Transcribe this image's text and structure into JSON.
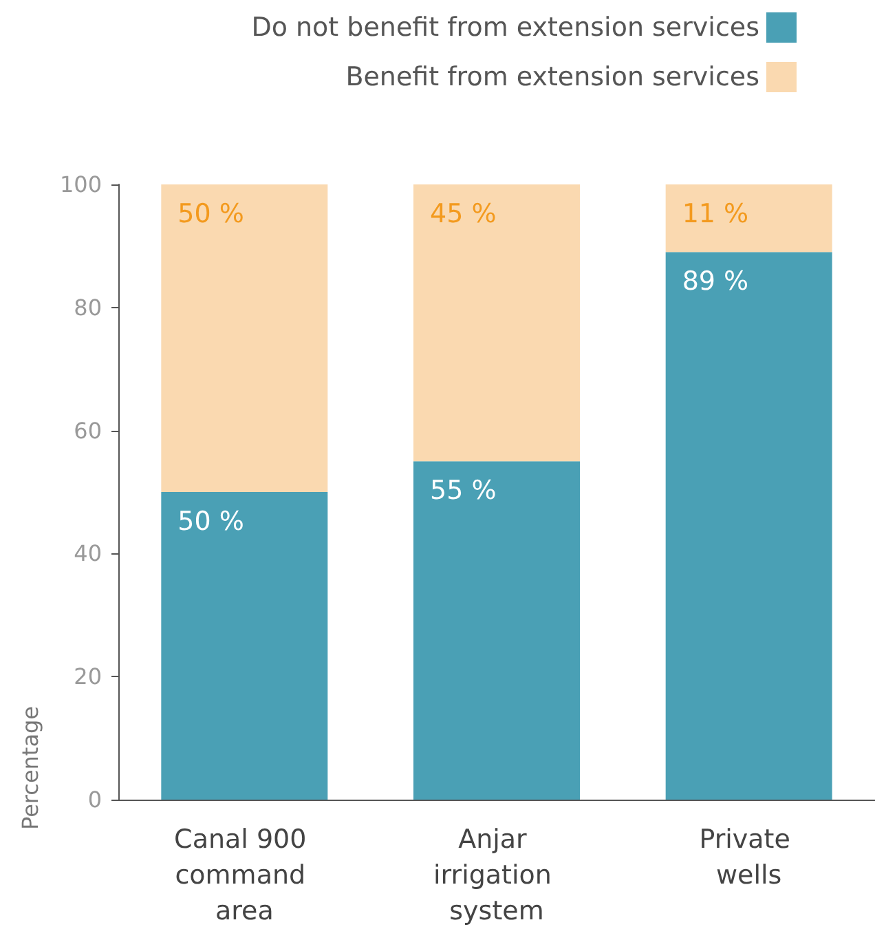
{
  "chart_data": {
    "type": "bar",
    "stacked": true,
    "categories": [
      "Canal 900 command area",
      "Anjar irrigation system",
      "Private wells"
    ],
    "series": [
      {
        "name": "Do not benefit from extension services",
        "color": "#4aa0b5",
        "values": [
          50,
          55,
          89
        ],
        "value_labels": [
          "50 %",
          "55 %",
          "89 %"
        ]
      },
      {
        "name": "Benefit from extension services",
        "color": "#fad9b0",
        "values": [
          50,
          45,
          11
        ],
        "value_labels": [
          "50 %",
          "45 %",
          "11 %"
        ]
      }
    ],
    "ylabel": "Percentage",
    "ylim": [
      0,
      100
    ],
    "yticks": [
      0,
      20,
      40,
      60,
      80,
      100
    ],
    "grid": false,
    "legend": "top right"
  }
}
